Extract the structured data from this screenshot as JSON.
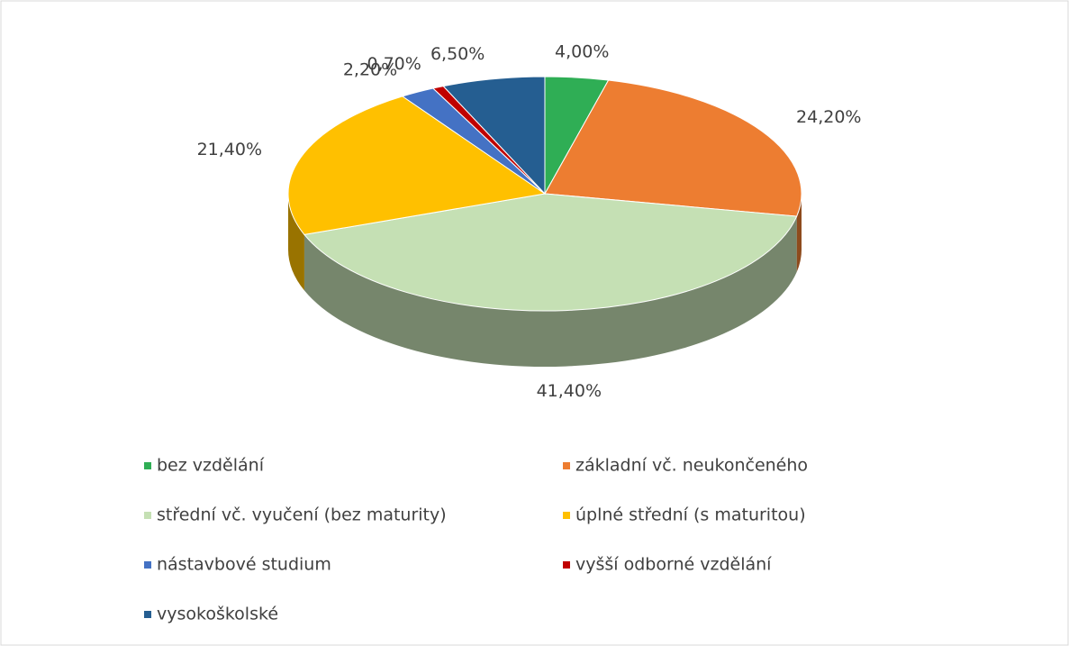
{
  "chart_data": {
    "type": "pie",
    "categories": [
      "bez vzdělání",
      "základní vč. neukončeného",
      "střední vč. vyučení (bez maturity)",
      "úplné střední (s maturitou)",
      "nástavbové studium",
      "vyšší odborné vzdělání",
      "vysokoškolské"
    ],
    "values": [
      4.0,
      24.2,
      41.4,
      21.4,
      2.2,
      0.7,
      6.5
    ],
    "value_labels": [
      "4,00%",
      "24,20%",
      "41,40%",
      "21,40%",
      "2,20%",
      "0,70%",
      "6,50%"
    ],
    "colors": [
      "#2fae55",
      "#ed7d31",
      "#c5e0b4",
      "#ffc000",
      "#4472c4",
      "#c00000",
      "#255e91"
    ],
    "legend": "bottom"
  }
}
